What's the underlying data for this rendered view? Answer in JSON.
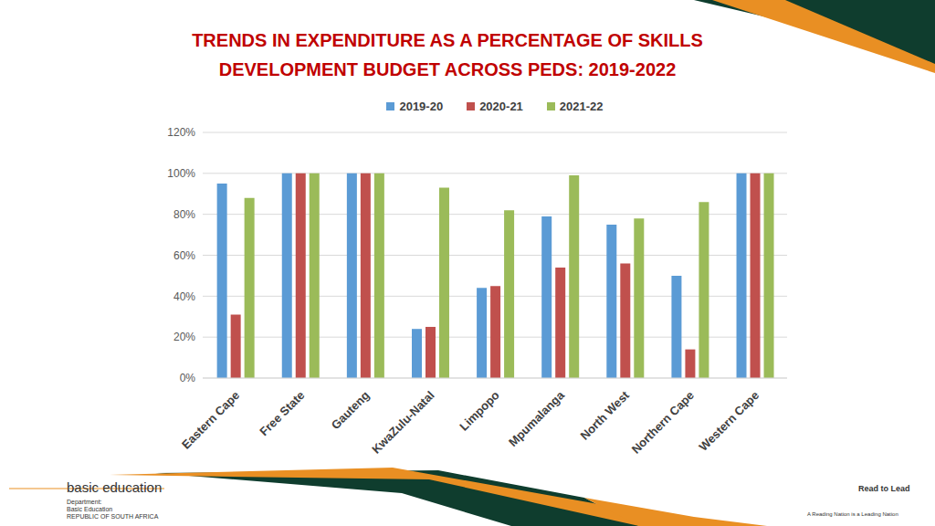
{
  "chart_data": {
    "type": "bar",
    "title": "TRENDS IN EXPENDITURE AS A PERCENTAGE  OF SKILLS",
    "subtitle": "DEVELOPMENT BUDGET ACROSS PEDS: 2019-2022",
    "categories": [
      "Eastern Cape",
      "Free State",
      "Gauteng",
      "KwaZulu-Natal",
      "Limpopo",
      "Mpumalanga",
      "North West",
      "Northern Cape",
      "Western Cape"
    ],
    "series": [
      {
        "name": "2019-20",
        "color": "#5b9bd5",
        "values": [
          95,
          100,
          100,
          24,
          44,
          79,
          75,
          50,
          100
        ]
      },
      {
        "name": "2020-21",
        "color": "#c0504d",
        "values": [
          31,
          100,
          100,
          25,
          45,
          54,
          56,
          14,
          100
        ]
      },
      {
        "name": "2021-22",
        "color": "#9bbb59",
        "values": [
          88,
          100,
          100,
          93,
          82,
          99,
          78,
          86,
          100
        ]
      }
    ],
    "ylim": [
      0,
      120
    ],
    "yticks": [
      {
        "value": 0,
        "label": "0%"
      },
      {
        "value": 20,
        "label": "20%"
      },
      {
        "value": 40,
        "label": "40%"
      },
      {
        "value": 60,
        "label": "60%"
      },
      {
        "value": 80,
        "label": "80%"
      },
      {
        "value": 100,
        "label": "100%"
      },
      {
        "value": 120,
        "label": "120%"
      }
    ],
    "grid": true,
    "legend": "top",
    "annotations": [
      "basic education",
      "Department:",
      "Basic Education",
      "REPUBLIC OF SOUTH AFRICA",
      "Read to Lead",
      "A Reading Nation is a Leading Nation"
    ]
  }
}
